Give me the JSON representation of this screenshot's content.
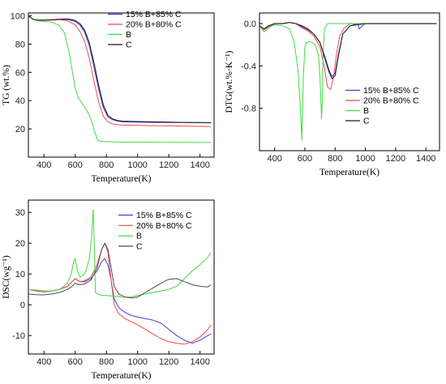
{
  "chart_data": [
    {
      "type": "line",
      "id": "tg",
      "xlabel": "Temperature(K)",
      "ylabel": "TG (wt.%)",
      "xlim": [
        300,
        1490
      ],
      "ylim": [
        0,
        102
      ],
      "xticks": [
        400,
        600,
        800,
        1000,
        1200,
        1400
      ],
      "yticks": [
        20,
        40,
        60,
        80,
        100
      ],
      "legend_position": "top-right",
      "series": [
        {
          "name": "15% B+85% C",
          "color": "#3f3fd9",
          "x": [
            300,
            330,
            360,
            400,
            450,
            500,
            550,
            600,
            630,
            660,
            690,
            720,
            750,
            780,
            810,
            840,
            870,
            900,
            1000,
            1100,
            1200,
            1300,
            1400,
            1470
          ],
          "y": [
            100,
            97.5,
            96.8,
            96.8,
            97.0,
            97.4,
            97.5,
            96.0,
            93.5,
            88.5,
            79,
            64,
            48,
            35,
            28.5,
            26.5,
            25.5,
            25,
            24.8,
            24.6,
            24.5,
            24.5,
            24.4,
            24.3
          ]
        },
        {
          "name": "20% B+80% C",
          "color": "#f04a4a",
          "x": [
            300,
            330,
            360,
            400,
            450,
            500,
            550,
            600,
            630,
            660,
            690,
            720,
            750,
            780,
            810,
            840,
            870,
            900,
            1000,
            1100,
            1200,
            1300,
            1400,
            1470
          ],
          "y": [
            100,
            97.5,
            96.8,
            96.8,
            97.0,
            97.2,
            96.5,
            93.5,
            89,
            82,
            70,
            54,
            39,
            29,
            25,
            23.5,
            23,
            22.8,
            22.5,
            22.3,
            22.1,
            22.0,
            21.8,
            21.6
          ]
        },
        {
          "name": "B",
          "color": "#3fdc3f",
          "x": [
            300,
            330,
            360,
            400,
            450,
            500,
            530,
            560,
            580,
            600,
            620,
            650,
            680,
            700,
            720,
            740,
            750,
            780,
            850,
            1000,
            1200,
            1400,
            1470
          ],
          "y": [
            100,
            97.3,
            96.5,
            96.0,
            95.5,
            93,
            88,
            75,
            62,
            49,
            42,
            37,
            32,
            27,
            20,
            13,
            11.5,
            11,
            10.8,
            10.6,
            10.5,
            10.4,
            10.4
          ]
        },
        {
          "name": "C",
          "color": "#1a1a1a",
          "x": [
            300,
            330,
            360,
            400,
            450,
            500,
            550,
            600,
            630,
            660,
            690,
            720,
            750,
            780,
            810,
            840,
            870,
            900,
            1000,
            1100,
            1200,
            1300,
            1400,
            1470
          ],
          "y": [
            100,
            97.6,
            97.0,
            97.0,
            97.3,
            97.6,
            97.8,
            96.8,
            94.5,
            90,
            81,
            67,
            51,
            37,
            29.5,
            27,
            26,
            25.5,
            25.2,
            25.0,
            24.8,
            24.6,
            24.5,
            24.4
          ]
        }
      ]
    },
    {
      "type": "line",
      "id": "dtg",
      "xlabel": "Temperature(K)",
      "ylabel": "DTG(wt.%·K⁻¹)",
      "xlim": [
        300,
        1490
      ],
      "ylim": [
        -1.2,
        0.1
      ],
      "xticks": [
        400,
        600,
        800,
        1000,
        1200,
        1400
      ],
      "yticks": [
        0.0,
        -0.4,
        -0.8
      ],
      "ytick_labels": [
        "0.0",
        "-0.4",
        "-0.8"
      ],
      "legend_position": "bottom-right",
      "series": [
        {
          "name": "15% B+85% C",
          "color": "#3f3fd9",
          "x": [
            300,
            330,
            360,
            400,
            450,
            500,
            540,
            580,
            620,
            660,
            700,
            730,
            760,
            780,
            800,
            820,
            850,
            900,
            950,
            960,
            980,
            1000,
            1100,
            1200,
            1300,
            1400,
            1470
          ],
          "y": [
            -0.02,
            -0.06,
            -0.03,
            0.0,
            0.0,
            0.01,
            0.0,
            -0.03,
            -0.06,
            -0.1,
            -0.18,
            -0.3,
            -0.44,
            -0.5,
            -0.47,
            -0.3,
            -0.1,
            -0.02,
            0.0,
            -0.05,
            -0.02,
            0.0,
            0.0,
            0.0,
            0.0,
            0.0,
            0.0
          ]
        },
        {
          "name": "20% B+80% C",
          "color": "#f04a4a",
          "x": [
            300,
            330,
            360,
            400,
            450,
            500,
            540,
            580,
            620,
            660,
            700,
            730,
            750,
            770,
            790,
            810,
            830,
            860,
            900,
            1000,
            1100,
            1200,
            1300,
            1400,
            1470
          ],
          "y": [
            -0.02,
            -0.06,
            -0.03,
            0.0,
            0.0,
            0.01,
            0.0,
            -0.04,
            -0.07,
            -0.12,
            -0.22,
            -0.42,
            -0.6,
            -0.62,
            -0.5,
            -0.28,
            -0.12,
            -0.04,
            0.0,
            0.0,
            0.0,
            0.0,
            0.0,
            0.0,
            0.0
          ]
        },
        {
          "name": "B",
          "color": "#3fdc3f",
          "x": [
            300,
            330,
            360,
            400,
            450,
            500,
            530,
            555,
            570,
            580,
            590,
            600,
            610,
            630,
            650,
            670,
            690,
            700,
            710,
            715,
            720,
            730,
            750,
            800,
            900,
            1000,
            1100,
            1200,
            1300,
            1400,
            1470
          ],
          "y": [
            -0.02,
            -0.08,
            -0.04,
            -0.01,
            -0.02,
            -0.05,
            -0.18,
            -0.45,
            -0.8,
            -1.1,
            -0.5,
            -0.22,
            -0.18,
            -0.17,
            -0.18,
            -0.2,
            -0.3,
            -0.5,
            -0.9,
            -0.75,
            -0.3,
            -0.05,
            0.0,
            0.0,
            0.0,
            0.0,
            0.0,
            0.0,
            0.0,
            0.0,
            0.0
          ]
        },
        {
          "name": "C",
          "color": "#1a1a1a",
          "x": [
            300,
            330,
            360,
            400,
            450,
            500,
            540,
            580,
            620,
            660,
            700,
            730,
            760,
            780,
            800,
            820,
            850,
            900,
            1000,
            1100,
            1200,
            1300,
            1400,
            1470
          ],
          "y": [
            -0.02,
            -0.05,
            -0.02,
            0.0,
            0.0,
            0.01,
            0.0,
            -0.02,
            -0.05,
            -0.1,
            -0.18,
            -0.32,
            -0.46,
            -0.52,
            -0.49,
            -0.32,
            -0.1,
            -0.02,
            0.0,
            0.0,
            0.0,
            0.0,
            0.0,
            0.0
          ]
        }
      ]
    },
    {
      "type": "line",
      "id": "dsc",
      "xlabel": "Temperature(K)",
      "ylabel": "DSC(wg⁻¹)",
      "xlim": [
        300,
        1490
      ],
      "ylim": [
        -16,
        34
      ],
      "xticks": [
        400,
        600,
        800,
        1000,
        1200,
        1400
      ],
      "yticks": [
        30,
        20,
        10,
        0,
        -10
      ],
      "legend_position": "top-right",
      "series": [
        {
          "name": "15% B+85% C",
          "color": "#3f3fd9",
          "x": [
            300,
            350,
            400,
            450,
            500,
            550,
            580,
            600,
            630,
            660,
            700,
            740,
            770,
            790,
            810,
            830,
            850,
            880,
            920,
            960,
            1000,
            1050,
            1100,
            1150,
            1200,
            1250,
            1300,
            1350,
            1400,
            1450,
            1470
          ],
          "y": [
            5,
            4.5,
            4.2,
            4.5,
            5,
            6,
            7.5,
            8.5,
            7.5,
            7.5,
            8.5,
            11,
            14,
            15,
            13,
            8,
            2,
            -1,
            -2.5,
            -3.5,
            -4,
            -4.5,
            -5,
            -6,
            -8,
            -10,
            -11.5,
            -12.5,
            -11.5,
            -10,
            -9.5
          ]
        },
        {
          "name": "20% B+80% C",
          "color": "#f04a4a",
          "x": [
            300,
            350,
            400,
            450,
            500,
            550,
            580,
            600,
            630,
            660,
            700,
            740,
            770,
            790,
            810,
            830,
            850,
            880,
            920,
            960,
            1000,
            1050,
            1100,
            1150,
            1200,
            1250,
            1300,
            1350,
            1400,
            1450,
            1470
          ],
          "y": [
            5,
            4.5,
            4.2,
            4.5,
            5,
            6,
            7.5,
            8.5,
            7.5,
            7.8,
            9,
            13,
            18,
            20,
            17,
            8,
            0,
            -3,
            -4.5,
            -5.5,
            -6.5,
            -8,
            -9.5,
            -11,
            -12,
            -12.5,
            -12.8,
            -12,
            -10.5,
            -8,
            -6.5
          ]
        },
        {
          "name": "B",
          "color": "#3fdc3f",
          "x": [
            300,
            350,
            400,
            450,
            500,
            550,
            575,
            590,
            600,
            615,
            630,
            650,
            670,
            690,
            705,
            715,
            722,
            730,
            745,
            770,
            800,
            850,
            900,
            950,
            1000,
            1050,
            1100,
            1150,
            1200,
            1250,
            1300,
            1350,
            1400,
            1450,
            1470
          ],
          "y": [
            5,
            4.8,
            4.5,
            4.5,
            5,
            7,
            10,
            14,
            15,
            11,
            9,
            9.5,
            11,
            15,
            22,
            31,
            20,
            4,
            3.5,
            3,
            3,
            2.8,
            2.5,
            2.5,
            3,
            3.5,
            4,
            4.5,
            5,
            6,
            8.5,
            11,
            13,
            15.5,
            17
          ]
        },
        {
          "name": "C",
          "color": "#4a4a4a",
          "x": [
            300,
            350,
            400,
            450,
            500,
            550,
            580,
            600,
            630,
            660,
            700,
            740,
            770,
            790,
            810,
            830,
            850,
            880,
            920,
            960,
            1000,
            1050,
            1100,
            1150,
            1200,
            1250,
            1300,
            1350,
            1400,
            1450,
            1470
          ],
          "y": [
            3.5,
            3.3,
            3.2,
            3.5,
            4,
            5,
            6,
            7,
            6.5,
            6.8,
            8,
            12,
            18,
            20,
            18,
            12,
            6,
            3.5,
            2.5,
            2.2,
            2.5,
            4,
            5.5,
            7,
            8.3,
            8.5,
            7.5,
            6.5,
            6,
            5.8,
            6.5
          ]
        }
      ]
    }
  ]
}
